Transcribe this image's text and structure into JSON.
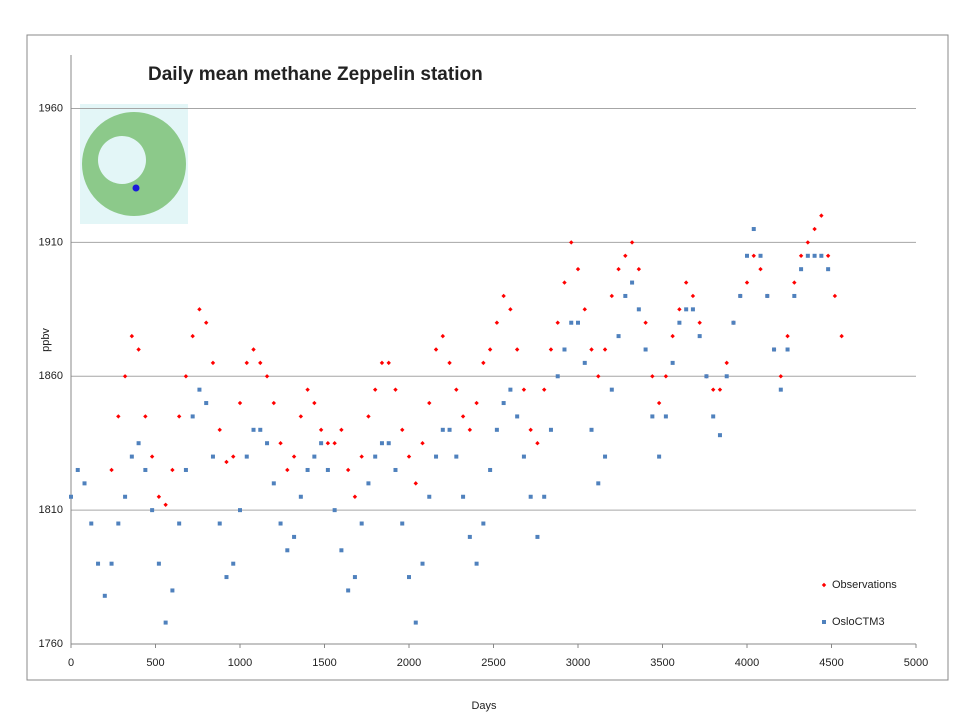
{
  "chart_data": {
    "type": "scatter",
    "title": "Daily mean methane Zeppelin station",
    "xlabel": "Days",
    "ylabel": "ppbv",
    "xlim": [
      0,
      5000
    ],
    "xticks": [
      0,
      500,
      1000,
      1500,
      2000,
      2500,
      3000,
      3500,
      4000,
      4500,
      5000
    ],
    "ylim": [
      1760,
      1980
    ],
    "yticks": [
      1760,
      1810,
      1860,
      1910,
      1960
    ],
    "grid": true,
    "legend": "lower right",
    "series": [
      {
        "name": "Observations",
        "color": "#ff0000",
        "marker": "diamond",
        "x": [
          240,
          280,
          320,
          360,
          400,
          440,
          480,
          520,
          560,
          600,
          640,
          680,
          720,
          760,
          800,
          840,
          880,
          920,
          960,
          1000,
          1040,
          1080,
          1120,
          1160,
          1200,
          1240,
          1280,
          1320,
          1360,
          1400,
          1440,
          1480,
          1520,
          1560,
          1600,
          1640,
          1680,
          1720,
          1760,
          1800,
          1840,
          1880,
          1920,
          1960,
          2000,
          2040,
          2080,
          2120,
          2160,
          2200,
          2240,
          2280,
          2320,
          2360,
          2400,
          2440,
          2480,
          2520,
          2560,
          2600,
          2640,
          2680,
          2720,
          2760,
          2800,
          2840,
          2880,
          2920,
          2960,
          3000,
          3040,
          3080,
          3120,
          3160,
          3200,
          3240,
          3280,
          3320,
          3360,
          3400,
          3440,
          3480,
          3520,
          3560,
          3600,
          3640,
          3680,
          3720,
          3760,
          3800,
          3840,
          3880,
          3920,
          3960,
          4000,
          4040,
          4080,
          4120,
          4160,
          4200,
          4240,
          4280,
          4320,
          4360,
          4400,
          4440,
          4480,
          4520,
          4560
        ],
        "values": [
          1825,
          1845,
          1860,
          1875,
          1870,
          1845,
          1830,
          1815,
          1812,
          1825,
          1845,
          1860,
          1875,
          1885,
          1880,
          1865,
          1840,
          1828,
          1830,
          1850,
          1865,
          1870,
          1865,
          1860,
          1850,
          1835,
          1825,
          1830,
          1845,
          1855,
          1850,
          1840,
          1835,
          1835,
          1840,
          1825,
          1815,
          1830,
          1845,
          1855,
          1865,
          1865,
          1855,
          1840,
          1830,
          1820,
          1835,
          1850,
          1870,
          1875,
          1865,
          1855,
          1845,
          1840,
          1850,
          1865,
          1870,
          1880,
          1890,
          1885,
          1870,
          1855,
          1840,
          1835,
          1855,
          1870,
          1880,
          1895,
          1910,
          1900,
          1885,
          1870,
          1860,
          1870,
          1890,
          1900,
          1905,
          1910,
          1900,
          1880,
          1860,
          1850,
          1860,
          1875,
          1885,
          1895,
          1890,
          1880,
          1860,
          1855,
          1855,
          1865,
          1880,
          1890,
          1895,
          1905,
          1900,
          1890,
          1870,
          1860,
          1875,
          1895,
          1905,
          1910,
          1915,
          1920,
          1905,
          1890,
          1875
        ]
      },
      {
        "name": "OsloCTM3",
        "color": "#4f81bd",
        "marker": "square",
        "x": [
          0,
          40,
          80,
          120,
          160,
          200,
          240,
          280,
          320,
          360,
          400,
          440,
          480,
          520,
          560,
          600,
          640,
          680,
          720,
          760,
          800,
          840,
          880,
          920,
          960,
          1000,
          1040,
          1080,
          1120,
          1160,
          1200,
          1240,
          1280,
          1320,
          1360,
          1400,
          1440,
          1480,
          1520,
          1560,
          1600,
          1640,
          1680,
          1720,
          1760,
          1800,
          1840,
          1880,
          1920,
          1960,
          2000,
          2040,
          2080,
          2120,
          2160,
          2200,
          2240,
          2280,
          2320,
          2360,
          2400,
          2440,
          2480,
          2520,
          2560,
          2600,
          2640,
          2680,
          2720,
          2760,
          2800,
          2840,
          2880,
          2920,
          2960,
          3000,
          3040,
          3080,
          3120,
          3160,
          3200,
          3240,
          3280,
          3320,
          3360,
          3400,
          3440,
          3480,
          3520,
          3560,
          3600,
          3640,
          3680,
          3720,
          3760,
          3800,
          3840,
          3880,
          3920,
          3960,
          4000,
          4040,
          4080,
          4120,
          4160,
          4200,
          4240,
          4280,
          4320,
          4360,
          4400,
          4440,
          4480
        ],
        "values": [
          1815,
          1825,
          1820,
          1805,
          1790,
          1778,
          1790,
          1805,
          1815,
          1830,
          1835,
          1825,
          1810,
          1790,
          1768,
          1780,
          1805,
          1825,
          1845,
          1855,
          1850,
          1830,
          1805,
          1785,
          1790,
          1810,
          1830,
          1840,
          1840,
          1835,
          1820,
          1805,
          1795,
          1800,
          1815,
          1825,
          1830,
          1835,
          1825,
          1810,
          1795,
          1780,
          1785,
          1805,
          1820,
          1830,
          1835,
          1835,
          1825,
          1805,
          1785,
          1768,
          1790,
          1815,
          1830,
          1840,
          1840,
          1830,
          1815,
          1800,
          1790,
          1805,
          1825,
          1840,
          1850,
          1855,
          1845,
          1830,
          1815,
          1800,
          1815,
          1840,
          1860,
          1870,
          1880,
          1880,
          1865,
          1840,
          1820,
          1830,
          1855,
          1875,
          1890,
          1895,
          1885,
          1870,
          1845,
          1830,
          1845,
          1865,
          1880,
          1885,
          1885,
          1875,
          1860,
          1845,
          1838,
          1860,
          1880,
          1890,
          1905,
          1915,
          1905,
          1890,
          1870,
          1855,
          1870,
          1890,
          1900,
          1905,
          1905,
          1905,
          1900
        ]
      }
    ]
  }
}
